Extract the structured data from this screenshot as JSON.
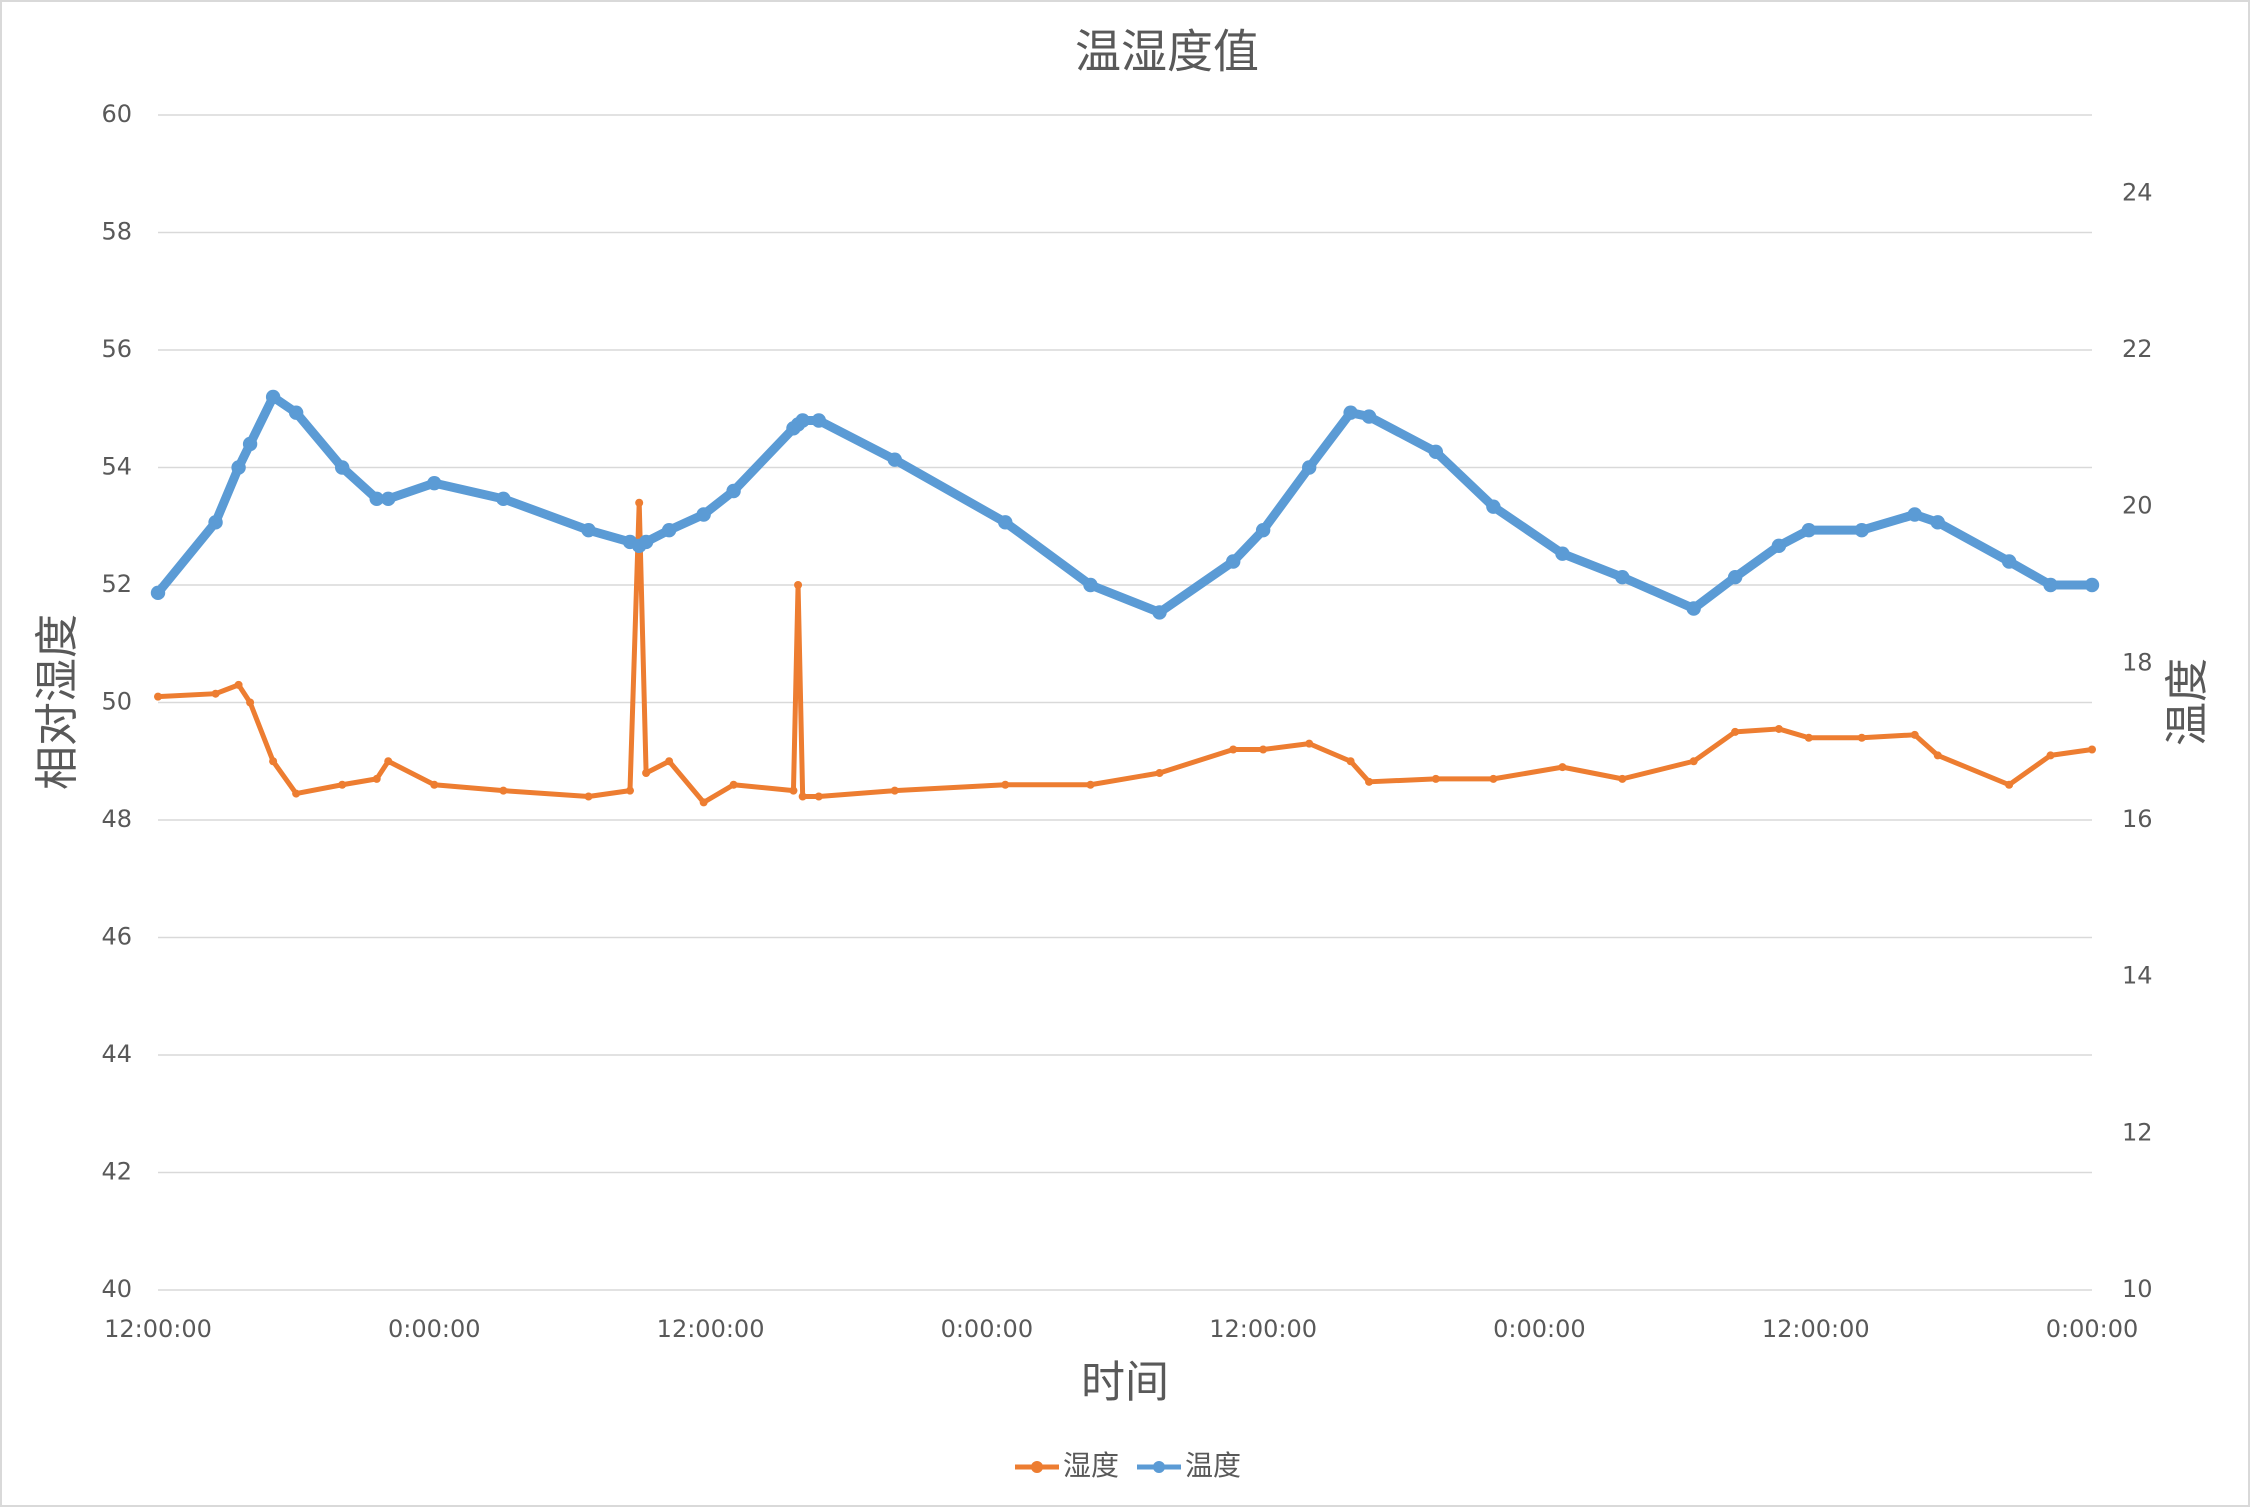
{
  "chart_data": {
    "type": "line",
    "title": "温湿度值",
    "x_label": "时间",
    "y_label": "相对湿度",
    "y2_label": "温度",
    "x": [
      0,
      2.5,
      3.5,
      4,
      5,
      6,
      8,
      9.5,
      10,
      12,
      15,
      18.7,
      20.5,
      20.9,
      21.2,
      22.2,
      23.7,
      25,
      27.6,
      27.8,
      28,
      28.7,
      32,
      36.8,
      40.5,
      43.5,
      46.7,
      48,
      50,
      51.8,
      52.6,
      55.5,
      58,
      61,
      63.6,
      66.7,
      68.5,
      70.4,
      71.7,
      74,
      76.3,
      77.3,
      80.4,
      82.2,
      84
    ],
    "series": [
      {
        "name": "湿度",
        "color": "#ed7d31",
        "axis": "y",
        "values": [
          50.1,
          50.15,
          50.3,
          50.0,
          49.0,
          48.45,
          48.6,
          48.7,
          49.0,
          48.6,
          48.5,
          48.4,
          48.5,
          53.4,
          48.8,
          49.0,
          48.3,
          48.6,
          48.5,
          52.0,
          48.4,
          48.4,
          48.5,
          48.6,
          48.6,
          48.8,
          49.2,
          49.2,
          49.3,
          49.0,
          48.65,
          48.7,
          48.7,
          48.9,
          48.7,
          49.0,
          49.5,
          49.55,
          49.4,
          49.4,
          49.45,
          49.1,
          48.6,
          49.1,
          49.2
        ]
      },
      {
        "name": "温度",
        "color": "#5b9bd5",
        "axis": "y2",
        "values": [
          18.9,
          19.8,
          20.5,
          20.8,
          21.4,
          21.2,
          20.5,
          20.1,
          20.1,
          20.3,
          20.1,
          19.7,
          19.55,
          19.5,
          19.55,
          19.7,
          19.9,
          20.2,
          21.0,
          21.05,
          21.1,
          21.1,
          20.6,
          19.8,
          19.0,
          18.65,
          19.3,
          19.7,
          20.5,
          21.2,
          21.15,
          20.7,
          20.0,
          19.4,
          19.1,
          18.7,
          19.1,
          19.5,
          19.7,
          19.7,
          19.9,
          19.8,
          19.3,
          19.0,
          19.0
        ]
      }
    ],
    "xlim": [
      0,
      84
    ],
    "xticks": [
      {
        "value": 0,
        "label": "12:00:00"
      },
      {
        "value": 12,
        "label": "0:00:00"
      },
      {
        "value": 24,
        "label": "12:00:00"
      },
      {
        "value": 36,
        "label": "0:00:00"
      },
      {
        "value": 48,
        "label": "12:00:00"
      },
      {
        "value": 60,
        "label": "0:00:00"
      },
      {
        "value": 72,
        "label": "12:00:00"
      },
      {
        "value": 84,
        "label": "0:00:00"
      }
    ],
    "ylim": [
      40,
      60
    ],
    "yticks": [
      40,
      42,
      44,
      46,
      48,
      50,
      52,
      54,
      56,
      58,
      60
    ],
    "y2lim": [
      10,
      25
    ],
    "y2ticks": [
      10,
      12,
      14,
      16,
      18,
      20,
      22,
      24
    ],
    "grid": true,
    "legend": "bottom"
  }
}
